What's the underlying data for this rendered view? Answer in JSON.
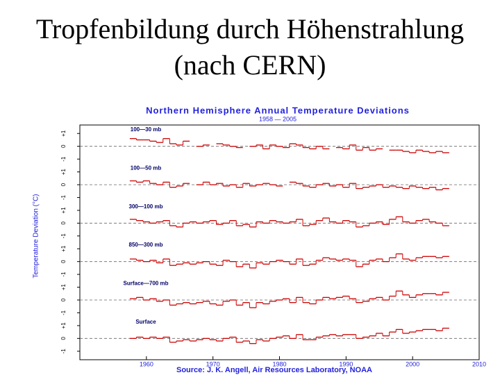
{
  "slide_title": [
    "Tropfenbildung durch Höhenstrahlung",
    "(nach CERN)"
  ],
  "chart_data": {
    "type": "line",
    "title": "Northern Hemisphere Annual Temperature Deviations",
    "subtitle": "1958 — 2005",
    "ylabel": "Temperature Deviation (°C)",
    "source": "Source: J. K. Angell, Air Resources Laboratory, NOAA",
    "xlim": [
      1950,
      2010
    ],
    "xticks": [
      1960,
      1970,
      1980,
      1990,
      2000,
      2010
    ],
    "x": [
      1958,
      1959,
      1960,
      1961,
      1962,
      1963,
      1964,
      1965,
      1966,
      1967,
      1968,
      1969,
      1970,
      1971,
      1972,
      1973,
      1974,
      1975,
      1976,
      1977,
      1978,
      1979,
      1980,
      1981,
      1982,
      1983,
      1984,
      1985,
      1986,
      1987,
      1988,
      1989,
      1990,
      1991,
      1992,
      1993,
      1994,
      1995,
      1996,
      1997,
      1998,
      1999,
      2000,
      2001,
      2002,
      2003,
      2004,
      2005
    ],
    "panels": [
      {
        "name": "100—30 mb",
        "color": "#cc0000",
        "ylim": [
          -1.5,
          1.5
        ],
        "yticks": [
          -1,
          0,
          {
            "value": 1,
            "label": "+1"
          }
        ],
        "values": [
          0.6,
          0.5,
          0.5,
          0.4,
          0.3,
          0.6,
          0.2,
          0.1,
          0.4,
          null,
          0.0,
          0.1,
          null,
          0.2,
          0.1,
          0.0,
          -0.1,
          null,
          0.0,
          0.1,
          -0.2,
          0.1,
          0.0,
          -0.1,
          0.2,
          0.1,
          -0.1,
          -0.2,
          0.0,
          -0.2,
          null,
          -0.1,
          -0.2,
          0.1,
          -0.3,
          -0.1,
          -0.3,
          -0.2,
          null,
          -0.3,
          -0.3,
          -0.4,
          -0.5,
          -0.3,
          -0.4,
          -0.5,
          -0.4,
          -0.5
        ]
      },
      {
        "name": "100—50 mb",
        "color": "#cc0000",
        "ylim": [
          -1.5,
          1.5
        ],
        "yticks": [
          -1,
          0,
          {
            "value": 1,
            "label": "+1"
          }
        ],
        "values": [
          0.3,
          0.2,
          0.3,
          0.1,
          0.0,
          0.2,
          -0.2,
          -0.1,
          0.1,
          null,
          0.0,
          0.2,
          0.0,
          0.1,
          -0.1,
          0.0,
          -0.2,
          0.1,
          -0.1,
          0.0,
          0.1,
          0.0,
          -0.1,
          null,
          0.2,
          0.1,
          -0.1,
          -0.2,
          0.0,
          0.1,
          -0.1,
          0.0,
          -0.2,
          0.1,
          -0.3,
          -0.2,
          -0.1,
          0.0,
          -0.2,
          -0.1,
          -0.2,
          -0.3,
          -0.1,
          -0.2,
          -0.3,
          -0.2,
          -0.4,
          -0.3
        ]
      },
      {
        "name": "300—100 mb",
        "color": "#cc0000",
        "ylim": [
          -1.5,
          1.5
        ],
        "yticks": [
          -1,
          0,
          {
            "value": 1,
            "label": "+1"
          }
        ],
        "values": [
          0.3,
          0.2,
          0.1,
          0.0,
          0.1,
          0.2,
          -0.2,
          -0.3,
          0.0,
          0.1,
          0.0,
          0.1,
          0.2,
          -0.1,
          0.0,
          0.2,
          -0.2,
          -0.1,
          -0.3,
          0.1,
          0.0,
          0.2,
          0.1,
          0.0,
          0.1,
          0.3,
          -0.2,
          -0.1,
          0.2,
          0.4,
          0.1,
          0.0,
          0.2,
          0.1,
          -0.3,
          -0.2,
          0.0,
          0.1,
          -0.1,
          0.3,
          0.5,
          0.1,
          0.0,
          0.2,
          0.3,
          0.1,
          0.0,
          -0.2
        ]
      },
      {
        "name": "850—300 mb",
        "color": "#cc0000",
        "ylim": [
          -1.5,
          1.5
        ],
        "yticks": [
          -1,
          0,
          {
            "value": 1,
            "label": "+1"
          }
        ],
        "values": [
          0.2,
          0.1,
          0.0,
          0.1,
          -0.1,
          0.2,
          -0.3,
          -0.2,
          -0.1,
          -0.2,
          -0.1,
          0.0,
          -0.2,
          -0.3,
          0.1,
          0.0,
          -0.4,
          -0.2,
          -0.5,
          -0.1,
          -0.2,
          0.0,
          0.1,
          0.0,
          -0.2,
          0.2,
          -0.3,
          -0.2,
          0.1,
          0.3,
          0.2,
          0.1,
          0.2,
          0.1,
          -0.4,
          -0.2,
          0.1,
          0.2,
          0.0,
          0.3,
          0.6,
          0.2,
          0.1,
          0.3,
          0.4,
          0.4,
          0.3,
          0.4
        ]
      },
      {
        "name": "Surface—700 mb",
        "color": "#cc0000",
        "ylim": [
          -1.5,
          1.5
        ],
        "yticks": [
          -1,
          0,
          {
            "value": 1,
            "label": "+1"
          }
        ],
        "values": [
          0.1,
          0.2,
          0.0,
          0.1,
          -0.1,
          0.0,
          -0.4,
          -0.3,
          -0.2,
          -0.3,
          -0.2,
          -0.1,
          -0.3,
          -0.4,
          -0.1,
          0.0,
          -0.4,
          -0.2,
          -0.6,
          -0.2,
          -0.3,
          -0.1,
          0.0,
          0.1,
          -0.2,
          0.2,
          -0.2,
          -0.3,
          0.0,
          0.2,
          0.1,
          0.2,
          0.3,
          0.1,
          -0.2,
          -0.1,
          0.1,
          0.2,
          0.0,
          0.3,
          0.7,
          0.4,
          0.2,
          0.4,
          0.5,
          0.5,
          0.4,
          0.6
        ]
      },
      {
        "name": "Surface",
        "color": "#cc0000",
        "ylim": [
          -1.5,
          1.5
        ],
        "yticks": [
          -1,
          0,
          {
            "value": 1,
            "label": "+1"
          }
        ],
        "values": [
          0.0,
          0.1,
          0.0,
          0.1,
          0.0,
          0.1,
          -0.3,
          -0.2,
          -0.1,
          -0.2,
          -0.1,
          0.0,
          -0.1,
          -0.2,
          0.0,
          0.1,
          -0.3,
          -0.2,
          -0.4,
          -0.1,
          -0.2,
          0.0,
          0.1,
          0.2,
          0.0,
          0.3,
          -0.1,
          -0.1,
          0.1,
          0.2,
          0.3,
          0.2,
          0.3,
          0.3,
          0.0,
          0.1,
          0.2,
          0.4,
          0.2,
          0.5,
          0.7,
          0.4,
          0.5,
          0.6,
          0.7,
          0.7,
          0.6,
          0.8
        ]
      }
    ]
  }
}
